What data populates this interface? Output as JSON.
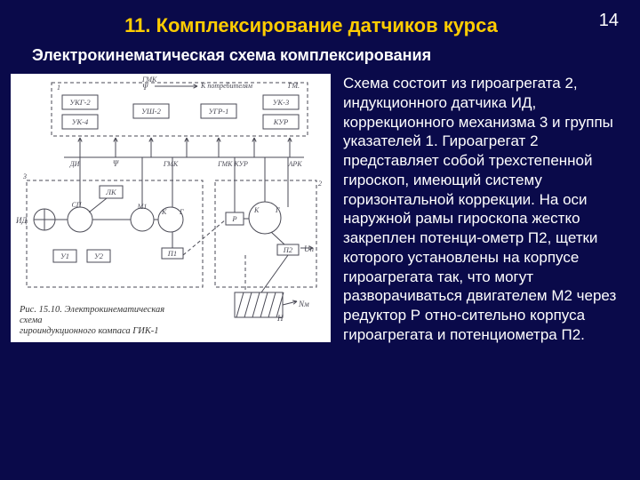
{
  "page_number": "14",
  "title": "11. Комплексирование датчиков курса",
  "subtitle": "Электрокинематическая схема комплексирования",
  "body_text": "Схема состоит из гироагрегата 2, индукционного датчика ИД, коррекционного механизма 3 и группы указателей 1. Гироагрегат 2 представляет собой трехстепенной гироскоп, имеющий систему горизонтальной коррекции. На оси наружной рамы гироскопа жестко закреплен потенци-ометр П2, щетки которого установлены на корпусе гироагрегата так, что могут разворачиваться двигателем М2 через редуктор Р отно-сительно корпуса гироагрегата и потенциометра П2.",
  "caption_line1": "Рис. 15.10. Электрокинематическая схема",
  "caption_line2": "гироиндукционного компаса ГИК-1",
  "diagram": {
    "background": "#ffffff",
    "line_color": "#4a4a55",
    "text_color": "#4a4a55",
    "font_size_small": 8,
    "font_size_box": 8.5,
    "top_labels": {
      "gmk_psi": "ГМК\nΨ",
      "k_potreb": "К потребителям",
      "gm": "ГМ."
    },
    "top_boxes": [
      "УКГ-2",
      "УК-4",
      "УШ-2",
      "УГР-1",
      "УК-3",
      "КУР"
    ],
    "mid_labels": [
      "ДИ",
      "Ψ",
      "ГМК",
      "ГМК КУР",
      "АРК"
    ],
    "left_block": {
      "id": "ИД",
      "sp": "СП",
      "u1": "У1",
      "u2": "У2",
      "m1": "М1",
      "lk": "ЛК",
      "k": "К",
      "gp": "Г",
      "p1": "П1"
    },
    "right_block": {
      "k": "К",
      "r": "Р",
      "g": "Г",
      "p2": "П2",
      "up": "Uп",
      "m2_via": ""
    },
    "bottom": {
      "n": "Н",
      "nm": "Nм"
    },
    "ref_nums": [
      "1",
      "2",
      "3"
    ]
  },
  "colors": {
    "slide_bg": "#0a0a4a",
    "title": "#ffcc00",
    "text": "#ffffff",
    "diagram_bg": "#ffffff",
    "diagram_stroke": "#4a4a55"
  }
}
